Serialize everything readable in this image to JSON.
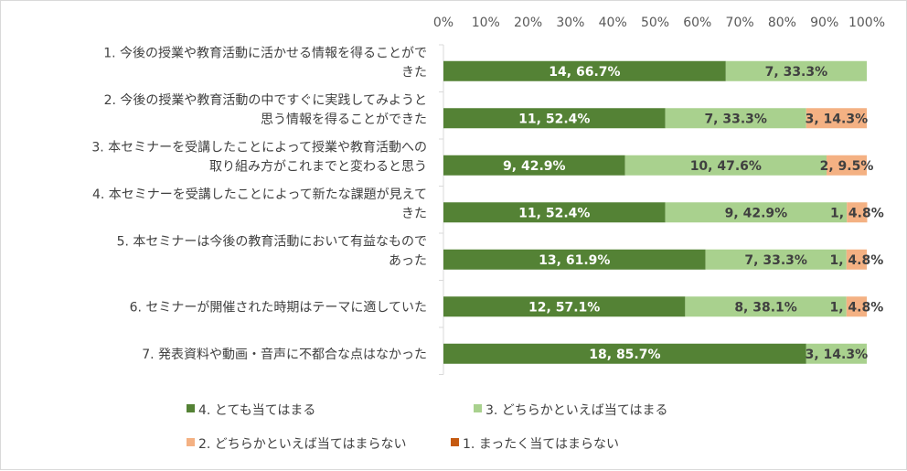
{
  "chart_data": {
    "type": "bar",
    "orientation": "horizontal",
    "stacked": true,
    "percent": true,
    "xlim": [
      0,
      100
    ],
    "x_ticks": [
      "0%",
      "10%",
      "20%",
      "30%",
      "40%",
      "50%",
      "60%",
      "70%",
      "80%",
      "90%",
      "100%"
    ],
    "grid": false,
    "legend_position": "bottom",
    "categories": [
      [
        "1. 今後の授業や教育活動に活かせる情報を得ることがで",
        "きた"
      ],
      [
        "2. 今後の授業や教育活動の中ですぐに実践してみようと",
        "思う情報を得ることができた"
      ],
      [
        "3. 本セミナーを受講したことによって授業や教育活動への",
        "取り組み方がこれまでと変わると思う"
      ],
      [
        "4. 本セミナーを受講したことによって新たな課題が見えて",
        "きた"
      ],
      [
        "5. 本セミナーは今後の教育活動において有益なもので",
        "あった"
      ],
      [
        "6. セミナーが開催された時期はテーマに適していた"
      ],
      [
        "7. 発表資料や動画・音声に不都合な点はなかった"
      ]
    ],
    "series": [
      {
        "name": "4. とても当てはまる",
        "color": "#548235",
        "label_color": "#ffffff",
        "values": [
          66.7,
          52.4,
          42.9,
          52.4,
          61.9,
          57.1,
          85.7
        ],
        "labels": [
          "14, 66.7%",
          "11, 52.4%",
          "9, 42.9%",
          "11, 52.4%",
          "13, 61.9%",
          "12, 57.1%",
          "18, 85.7%"
        ]
      },
      {
        "name": "3. どちらかといえば当てはまる",
        "color": "#a9d18e",
        "label_color": "#404040",
        "values": [
          33.3,
          33.3,
          47.6,
          42.9,
          33.3,
          38.1,
          14.3
        ],
        "labels": [
          "7, 33.3%",
          "7, 33.3%",
          "10, 47.6%",
          "9, 42.9%",
          "7, 33.3%",
          "8, 38.1%",
          "3, 14.3%"
        ]
      },
      {
        "name": "2. どちらかといえば当てはまらない",
        "color": "#f4b183",
        "label_color": "#404040",
        "values": [
          0,
          14.3,
          9.5,
          4.8,
          4.8,
          4.8,
          0
        ],
        "labels": [
          "",
          "3, 14.3%",
          "2, 9.5%",
          "1, 4.8%",
          "1, 4.8%",
          "1, 4.8%",
          ""
        ]
      },
      {
        "name": "1. まったく当てはまらない",
        "color": "#c55a11",
        "label_color": "#404040",
        "values": [
          0,
          0,
          0,
          0,
          0,
          0,
          0
        ],
        "labels": [
          "",
          "",
          "",
          "",
          "",
          "",
          ""
        ]
      }
    ]
  }
}
